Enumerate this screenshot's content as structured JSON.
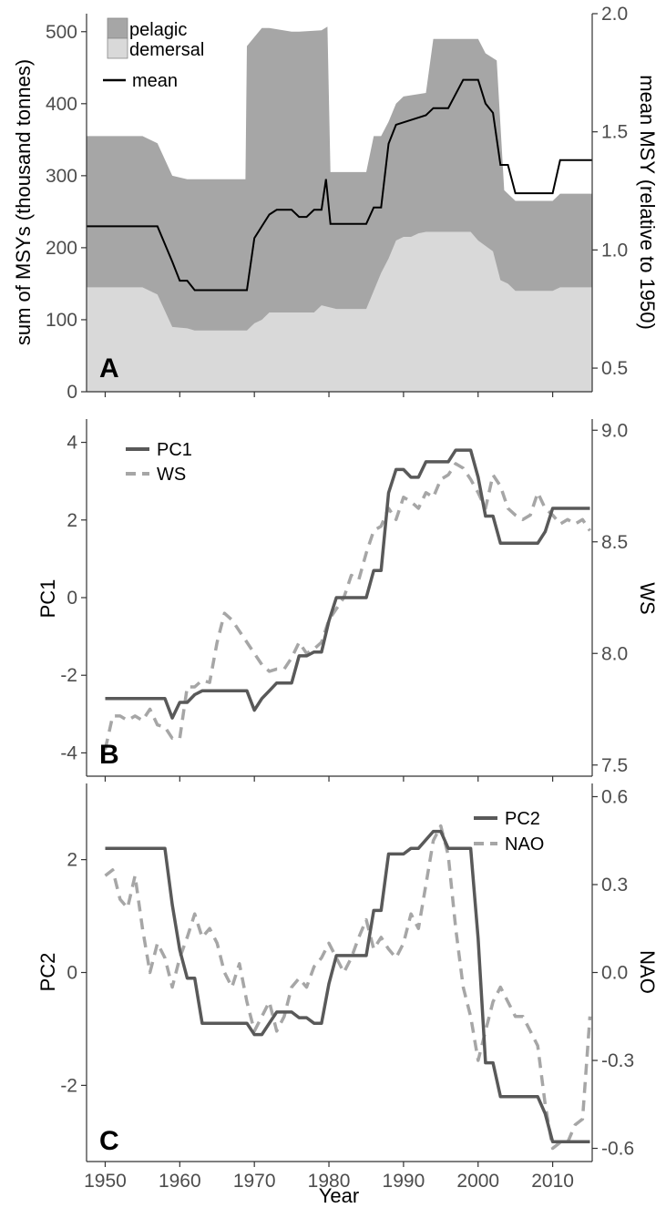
{
  "figure": {
    "x_axis_title": "Year",
    "x_ticks": [
      "1950",
      "1960",
      "1970",
      "1980",
      "1990",
      "2000",
      "2010"
    ]
  },
  "chart_data": [
    {
      "panel": "A",
      "type": "area",
      "ylabel_left": "sum of MSYs (thousand tonnes)",
      "ylabel_right": "mean MSY (relative to 1950)",
      "xlim": [
        1947.5,
        2015.3
      ],
      "ylim_left": [
        0,
        525
      ],
      "ylim_right": [
        0.4,
        2.0
      ],
      "yticks_left": [
        "0",
        "100",
        "200",
        "300",
        "400",
        "500"
      ],
      "yticks_right": [
        "0.5",
        "1.0",
        "1.5",
        "2.0"
      ],
      "legend": [
        "pelagic",
        "demersal",
        "mean"
      ],
      "legend_placement": "top-left",
      "colors": {
        "pelagic": "#a6a6a6",
        "demersal": "#d9d9d9",
        "mean": "#000000"
      },
      "demersal": {
        "x": [
          1947.5,
          1955,
          1957,
          1959,
          1961,
          1962,
          1969,
          1970,
          1971,
          1972,
          1978,
          1979,
          1981,
          1985,
          1986,
          1987,
          1988,
          1989,
          1990,
          1991,
          1992,
          1993,
          1999,
          2000,
          2002,
          2003,
          2004,
          2005,
          2010,
          2011,
          2015.3
        ],
        "y": [
          145,
          145,
          135,
          90,
          88,
          85,
          85,
          95,
          100,
          110,
          110,
          120,
          115,
          115,
          140,
          165,
          185,
          210,
          215,
          215,
          220,
          222,
          222,
          210,
          195,
          155,
          150,
          140,
          140,
          145,
          145
        ]
      },
      "total": {
        "x": [
          1947.5,
          1955,
          1957,
          1959,
          1961,
          1962,
          1968.8,
          1969,
          1971,
          1972,
          1975,
          1976,
          1979,
          1979.8,
          1980.2,
          1981,
          1985,
          1986,
          1987,
          1988,
          1989,
          1990,
          1993,
          1994,
          2000,
          2001,
          2002.5,
          2003.5,
          2005,
          2010,
          2011,
          2015.3
        ],
        "y": [
          355,
          355,
          345,
          300,
          295,
          295,
          295,
          480,
          505,
          505,
          500,
          500,
          502,
          507,
          305,
          305,
          305,
          355,
          355,
          375,
          400,
          410,
          415,
          490,
          490,
          470,
          460,
          280,
          265,
          265,
          275,
          275
        ]
      },
      "mean": {
        "x": [
          1947.5,
          1957,
          1959,
          1960,
          1961,
          1962,
          1969,
          1970,
          1971,
          1972,
          1973,
          1975,
          1976,
          1977,
          1978,
          1979,
          1979.6,
          1980.2,
          1981,
          1985,
          1986,
          1987,
          1988,
          1989,
          1990,
          1991,
          1993,
          1994,
          1996,
          1997,
          1998,
          2000,
          2001,
          2002,
          2003,
          2004,
          2005,
          2010,
          2011,
          2015.3
        ],
        "y": [
          1.1,
          1.1,
          0.95,
          0.87,
          0.87,
          0.83,
          0.83,
          1.05,
          1.1,
          1.15,
          1.17,
          1.17,
          1.14,
          1.14,
          1.17,
          1.17,
          1.3,
          1.11,
          1.11,
          1.11,
          1.18,
          1.18,
          1.45,
          1.53,
          1.54,
          1.55,
          1.57,
          1.6,
          1.6,
          1.66,
          1.72,
          1.72,
          1.62,
          1.58,
          1.36,
          1.36,
          1.24,
          1.24,
          1.38,
          1.38
        ]
      }
    },
    {
      "panel": "B",
      "type": "line",
      "ylabel_left": "PC1",
      "ylabel_right": "WS",
      "xlim": [
        1947.5,
        2015.3
      ],
      "ylim_left": [
        -4.6,
        4.6
      ],
      "ylim_right": [
        7.45,
        9.05
      ],
      "yticks_left": [
        "-4",
        "-2",
        "0",
        "2",
        "4"
      ],
      "yticks_right": [
        "7.5",
        "8.0",
        "8.5",
        "9.0"
      ],
      "legend_placement": "top-left",
      "series": [
        {
          "name": "PC1",
          "axis": "left",
          "color": "#595959",
          "dash": false,
          "x": [
            1950,
            1958,
            1959,
            1960,
            1961,
            1962,
            1963,
            1964,
            1969,
            1970,
            1971,
            1972,
            1973,
            1975,
            1976,
            1977,
            1978,
            1979,
            1980,
            1981,
            1985,
            1986,
            1987,
            1988,
            1989,
            1990,
            1991,
            1992,
            1993,
            1994,
            1996,
            1997,
            1999,
            2000,
            2001,
            2002,
            2003,
            2004,
            2008,
            2009,
            2010,
            2015
          ],
          "y": [
            -2.6,
            -2.6,
            -3.1,
            -2.7,
            -2.7,
            -2.5,
            -2.4,
            -2.4,
            -2.4,
            -2.9,
            -2.6,
            -2.4,
            -2.2,
            -2.2,
            -1.5,
            -1.5,
            -1.4,
            -1.4,
            -0.6,
            0.0,
            0.0,
            0.7,
            0.7,
            2.7,
            3.3,
            3.3,
            3.1,
            3.1,
            3.5,
            3.5,
            3.5,
            3.8,
            3.8,
            3.1,
            2.1,
            2.1,
            1.4,
            1.4,
            1.4,
            1.7,
            2.3,
            2.3
          ]
        },
        {
          "name": "WS",
          "axis": "right",
          "color": "#a6a6a6",
          "dash": true,
          "x": [
            1950,
            1951,
            1952,
            1953,
            1954,
            1955,
            1956,
            1957,
            1958,
            1959,
            1960,
            1961,
            1962,
            1963,
            1964,
            1965,
            1966,
            1967,
            1968,
            1969,
            1970,
            1971,
            1972,
            1973,
            1974,
            1975,
            1976,
            1977,
            1978,
            1979,
            1980,
            1981,
            1982,
            1983,
            1984,
            1985,
            1986,
            1987,
            1988,
            1989,
            1990,
            1991,
            1992,
            1993,
            1994,
            1995,
            1996,
            1997,
            1998,
            1999,
            2000,
            2001,
            2002,
            2003,
            2004,
            2005,
            2006,
            2007,
            2008,
            2009,
            2010,
            2011,
            2012,
            2013,
            2014,
            2015
          ],
          "y": [
            7.57,
            7.72,
            7.72,
            7.7,
            7.72,
            7.7,
            7.75,
            7.68,
            7.67,
            7.62,
            7.62,
            7.85,
            7.85,
            7.88,
            7.87,
            8.05,
            8.18,
            8.15,
            8.1,
            8.05,
            8.0,
            7.95,
            7.92,
            7.93,
            7.93,
            7.98,
            8.05,
            8.0,
            8.02,
            8.05,
            8.15,
            8.2,
            8.25,
            8.35,
            8.33,
            8.45,
            8.55,
            8.57,
            8.65,
            8.6,
            8.7,
            8.68,
            8.65,
            8.72,
            8.7,
            8.78,
            8.8,
            8.85,
            8.83,
            8.78,
            8.72,
            8.65,
            8.8,
            8.75,
            8.65,
            8.62,
            8.6,
            8.62,
            8.72,
            8.65,
            8.62,
            8.58,
            8.6,
            8.58,
            8.6,
            8.55
          ]
        }
      ]
    },
    {
      "panel": "C",
      "type": "line",
      "ylabel_left": "PC2",
      "ylabel_right": "NAO",
      "xlim": [
        1947.5,
        2015.3
      ],
      "ylim_left": [
        -3.35,
        3.35
      ],
      "ylim_right": [
        -0.645,
        0.645
      ],
      "yticks_left": [
        "-2",
        "0",
        "2"
      ],
      "yticks_right": [
        "-0.6",
        "-0.3",
        "0.0",
        "0.3",
        "0.6"
      ],
      "legend_placement": "top-right",
      "series": [
        {
          "name": "PC2",
          "axis": "left",
          "color": "#595959",
          "dash": false,
          "x": [
            1950,
            1958,
            1959,
            1960,
            1961,
            1962,
            1963,
            1968,
            1969,
            1970,
            1971,
            1972,
            1973,
            1975,
            1976,
            1977,
            1978,
            1979,
            1980,
            1981,
            1985,
            1986,
            1987,
            1988,
            1989,
            1990,
            1991,
            1992,
            1994,
            1995,
            1996,
            1997,
            1999,
            2000,
            2001,
            2002,
            2003,
            2004,
            2008,
            2009,
            2010,
            2015
          ],
          "y": [
            2.2,
            2.2,
            1.2,
            0.4,
            -0.1,
            -0.1,
            -0.9,
            -0.9,
            -0.9,
            -1.1,
            -1.1,
            -0.9,
            -0.7,
            -0.7,
            -0.8,
            -0.8,
            -0.9,
            -0.9,
            -0.2,
            0.3,
            0.3,
            1.1,
            1.1,
            2.1,
            2.1,
            2.1,
            2.2,
            2.2,
            2.5,
            2.5,
            2.2,
            2.2,
            2.2,
            0.6,
            -1.6,
            -1.6,
            -2.2,
            -2.2,
            -2.2,
            -2.5,
            -3.0,
            -3.0
          ]
        },
        {
          "name": "NAO",
          "axis": "right",
          "color": "#a6a6a6",
          "dash": true,
          "x": [
            1950,
            1951,
            1952,
            1953,
            1954,
            1955,
            1956,
            1957,
            1958,
            1959,
            1960,
            1961,
            1962,
            1963,
            1964,
            1965,
            1966,
            1967,
            1968,
            1969,
            1970,
            1971,
            1972,
            1973,
            1974,
            1975,
            1976,
            1977,
            1978,
            1979,
            1980,
            1981,
            1982,
            1983,
            1984,
            1985,
            1986,
            1987,
            1988,
            1989,
            1990,
            1991,
            1992,
            1993,
            1994,
            1995,
            1996,
            1997,
            1998,
            1999,
            2000,
            2001,
            2002,
            2003,
            2004,
            2005,
            2006,
            2007,
            2008,
            2009,
            2010,
            2011,
            2012,
            2013,
            2014,
            2015
          ],
          "y": [
            0.33,
            0.35,
            0.25,
            0.22,
            0.33,
            0.15,
            0.0,
            0.1,
            0.05,
            -0.05,
            0.05,
            0.12,
            0.2,
            0.12,
            0.15,
            0.1,
            0.0,
            -0.05,
            0.03,
            -0.1,
            -0.2,
            -0.15,
            -0.1,
            -0.2,
            -0.15,
            -0.05,
            -0.02,
            -0.05,
            0.02,
            0.05,
            0.1,
            0.05,
            0.0,
            0.05,
            0.12,
            0.18,
            0.08,
            0.12,
            0.08,
            0.05,
            0.1,
            0.2,
            0.15,
            0.3,
            0.45,
            0.5,
            0.4,
            0.15,
            -0.05,
            -0.15,
            -0.3,
            -0.2,
            -0.1,
            -0.05,
            -0.1,
            -0.15,
            -0.15,
            -0.2,
            -0.25,
            -0.45,
            -0.6,
            -0.58,
            -0.58,
            -0.52,
            -0.5,
            -0.15
          ]
        }
      ]
    }
  ]
}
